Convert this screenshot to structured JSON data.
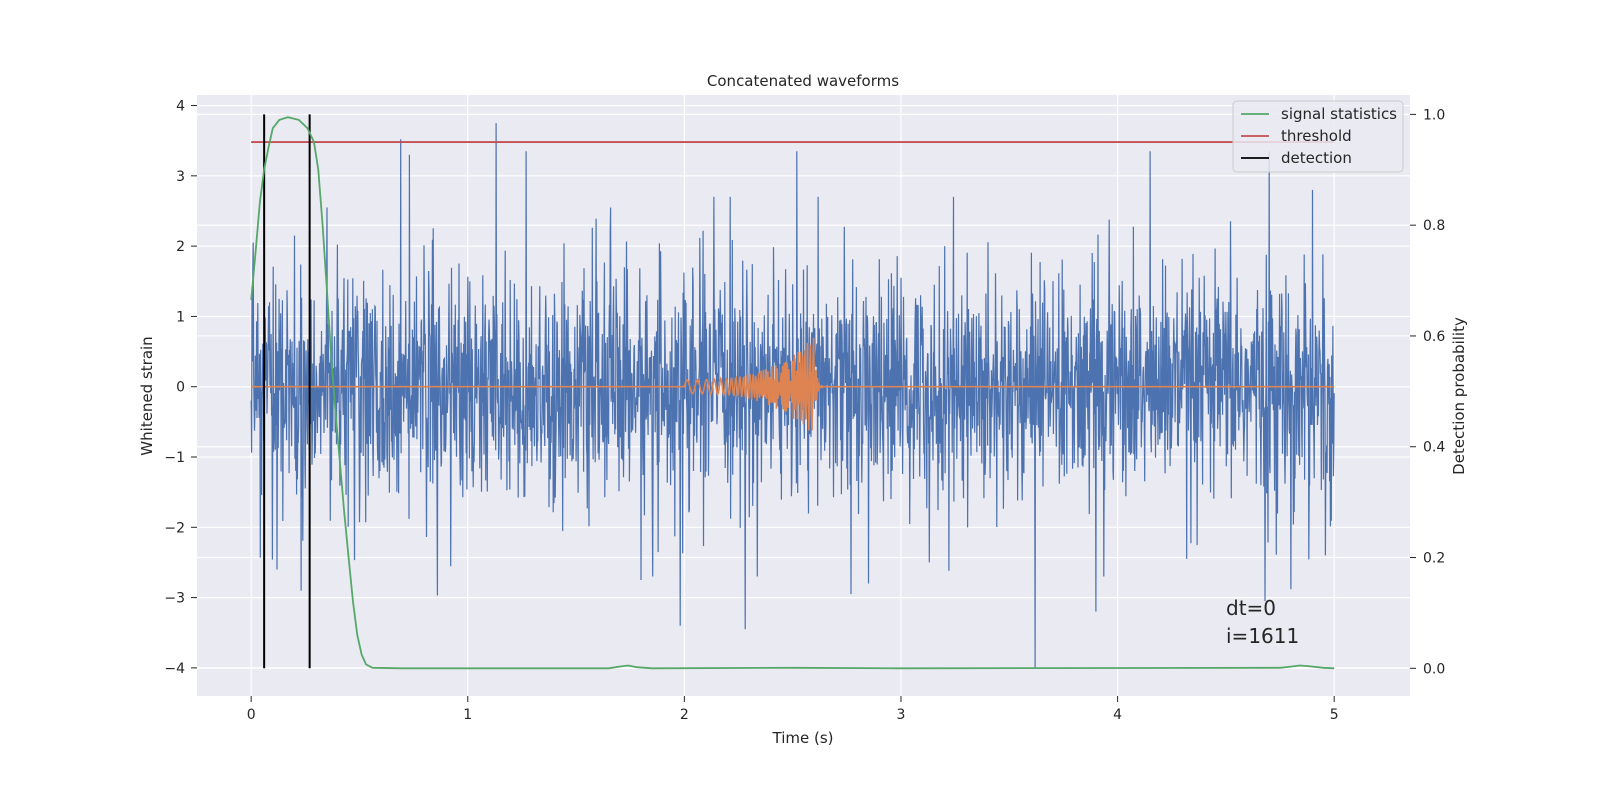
{
  "chart_data": {
    "type": "line",
    "title": "Concatenated waveforms",
    "xlabel": "Time (s)",
    "ylabel": "Whitened strain",
    "y2label": "Detection probability",
    "xlim": [
      -0.25,
      5.35
    ],
    "ylim": [
      -4.4,
      4.15
    ],
    "y2lim": [
      -0.05,
      1.035
    ],
    "xticks": [
      0,
      1,
      2,
      3,
      4,
      5
    ],
    "yticks": [
      -4,
      -3,
      -2,
      -1,
      0,
      1,
      2,
      3,
      4
    ],
    "y2ticks": [
      0.0,
      0.2,
      0.4,
      0.6,
      0.8,
      1.0
    ],
    "grid": true,
    "legend_position": "top-right",
    "annotations": [
      "dt=0",
      "i=1611"
    ],
    "series": [
      {
        "role": "noise",
        "axis": "left",
        "color": "#4c72b0",
        "description_values": {
          "x_range": [
            0,
            5
          ],
          "typical_amplitude": 1.2,
          "spikes": [
            {
              "x": 0.01,
              "y": -2.85
            },
            {
              "x": 0.01,
              "y": 2.05
            },
            {
              "x": 0.12,
              "y": -2.6
            },
            {
              "x": 0.2,
              "y": 2.15
            },
            {
              "x": 0.23,
              "y": -2.9
            },
            {
              "x": 0.35,
              "y": 2.55
            },
            {
              "x": 0.69,
              "y": 3.52
            },
            {
              "x": 0.73,
              "y": 3.3
            },
            {
              "x": 0.86,
              "y": -2.97
            },
            {
              "x": 1.13,
              "y": 3.75
            },
            {
              "x": 1.27,
              "y": 3.35
            },
            {
              "x": 1.66,
              "y": 2.55
            },
            {
              "x": 1.8,
              "y": -2.75
            },
            {
              "x": 1.98,
              "y": -3.4
            },
            {
              "x": 2.28,
              "y": -3.45
            },
            {
              "x": 2.52,
              "y": 3.35
            },
            {
              "x": 2.77,
              "y": -2.95
            },
            {
              "x": 2.85,
              "y": -2.8
            },
            {
              "x": 3.13,
              "y": -2.5
            },
            {
              "x": 3.62,
              "y": -4.0
            },
            {
              "x": 3.7,
              "y": -0.05
            },
            {
              "x": 3.9,
              "y": -3.2
            },
            {
              "x": 4.15,
              "y": 3.35
            },
            {
              "x": 4.32,
              "y": -2.45
            },
            {
              "x": 4.68,
              "y": -3.05
            },
            {
              "x": 4.7,
              "y": 3.35
            },
            {
              "x": 4.8,
              "y": -2.88
            },
            {
              "x": 4.9,
              "y": 2.8
            },
            {
              "x": 4.96,
              "y": -2.4
            }
          ]
        }
      },
      {
        "role": "injected_signal",
        "axis": "left",
        "color": "#dd8452",
        "chirp": {
          "x_start": 2.0,
          "x_peak": 2.6,
          "amp_start": 0.1,
          "amp_peak": 0.72,
          "x_end": 2.65
        }
      },
      {
        "name": "signal statistics",
        "axis": "right",
        "color": "#55a868",
        "points": [
          [
            0.0,
            0.665
          ],
          [
            0.02,
            0.75
          ],
          [
            0.04,
            0.84
          ],
          [
            0.06,
            0.9
          ],
          [
            0.08,
            0.94
          ],
          [
            0.1,
            0.975
          ],
          [
            0.13,
            0.99
          ],
          [
            0.17,
            0.995
          ],
          [
            0.22,
            0.99
          ],
          [
            0.26,
            0.975
          ],
          [
            0.29,
            0.95
          ],
          [
            0.31,
            0.9
          ],
          [
            0.33,
            0.8
          ],
          [
            0.35,
            0.68
          ],
          [
            0.37,
            0.56
          ],
          [
            0.39,
            0.46
          ],
          [
            0.41,
            0.37
          ],
          [
            0.43,
            0.28
          ],
          [
            0.45,
            0.2
          ],
          [
            0.47,
            0.12
          ],
          [
            0.49,
            0.06
          ],
          [
            0.51,
            0.025
          ],
          [
            0.53,
            0.007
          ],
          [
            0.56,
            0.001
          ],
          [
            0.7,
            0.0
          ],
          [
            1.65,
            0.0
          ],
          [
            1.7,
            0.003
          ],
          [
            1.74,
            0.005
          ],
          [
            1.78,
            0.002
          ],
          [
            1.85,
            0.0
          ],
          [
            2.5,
            0.001
          ],
          [
            3.0,
            0.0
          ],
          [
            4.75,
            0.001
          ],
          [
            4.8,
            0.003
          ],
          [
            4.84,
            0.005
          ],
          [
            4.88,
            0.004
          ],
          [
            4.95,
            0.001
          ],
          [
            5.0,
            0.0
          ]
        ]
      },
      {
        "name": "threshold",
        "axis": "right",
        "color": "#c44e52",
        "value": 0.95,
        "x_range": [
          0,
          5
        ]
      },
      {
        "name": "detection",
        "axis": "right",
        "color": "#000000",
        "x": [
          0.06,
          0.27
        ],
        "y_range": [
          0.0,
          1.0
        ]
      }
    ],
    "legend": [
      "signal statistics",
      "threshold",
      "detection"
    ]
  }
}
